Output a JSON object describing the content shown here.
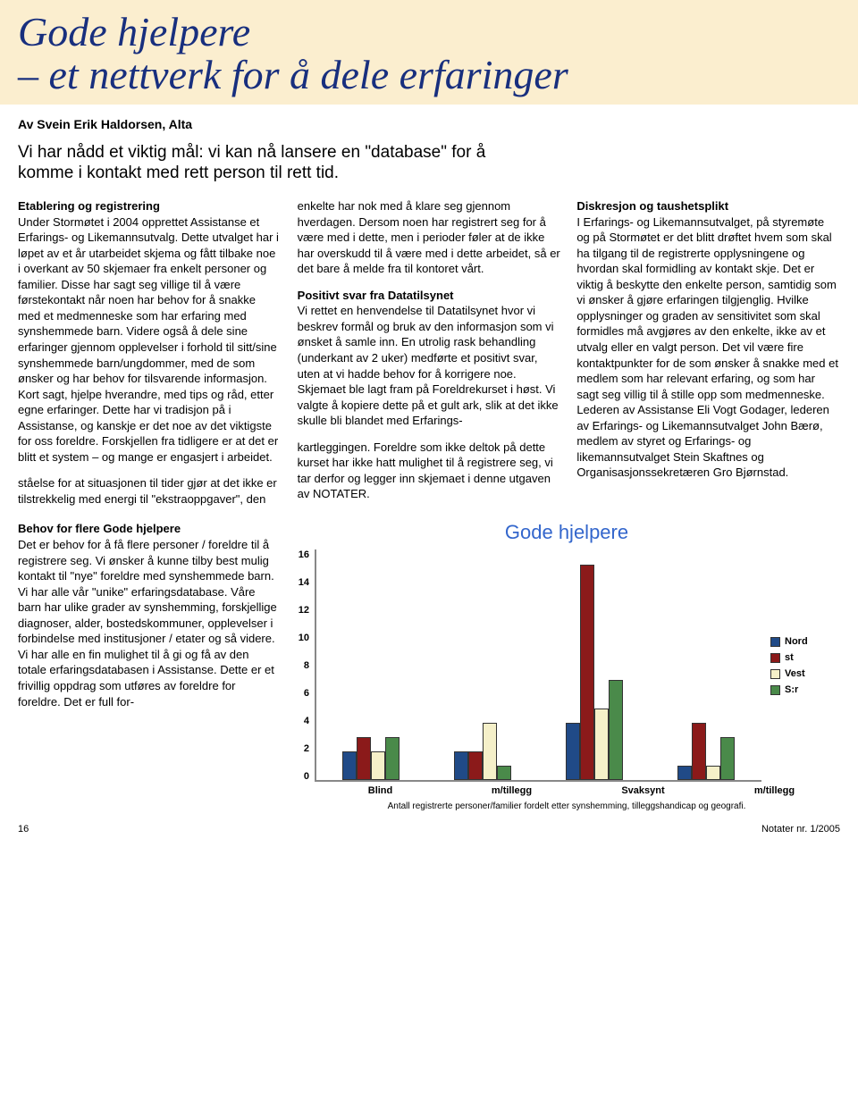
{
  "header": {
    "title_line1": "Gode hjelpere",
    "title_line2": "– et nettverk for å dele erfaringer"
  },
  "byline": "Av Svein Erik Haldorsen, Alta",
  "intro": "Vi har nådd et viktig mål: vi kan nå lansere en \"database\" for å komme i kontakt med rett person til rett tid.",
  "sections": {
    "s1_head": "Etablering og registrering",
    "s1_body": "Under Stormøtet i 2004 opprettet Assistanse et Erfarings- og Likemannsutvalg. Dette utvalget har i løpet av et år utarbeidet skjema og fått tilbake noe i overkant av 50 skjemaer fra enkelt personer og familier. Disse har sagt seg villige til å være førstekontakt når noen har behov for å snakke med et medmenneske som har erfaring med synshemmede barn. Videre også å dele sine erfaringer gjennom opplevelser i forhold til sitt/sine synshemmede barn/ungdommer, med de som ønsker og har behov for tilsvarende informasjon. Kort sagt, hjelpe hverandre, med tips og råd, etter egne erfaringer. Dette har vi tradisjon på i Assistanse, og kanskje er det noe av det viktigste for oss foreldre. Forskjellen fra tidligere er at det er blitt et system – og mange er engasjert i arbeidet.",
    "s1_cont": "ståelse for at situasjonen til tider gjør at det ikke er tilstrekkelig med energi til \"ekstraoppgaver\", den enkelte har nok med å klare seg gjennom hverdagen. Dersom noen har registrert seg for å være med i dette, men i perioder føler at de ikke har overskudd til å være med i dette arbeidet, så er det bare å melde fra til kontoret vårt.",
    "s2_head": "Positivt svar fra Datatilsynet",
    "s2_body": "Vi rettet en henvendelse til Datatilsynet hvor vi beskrev formål og bruk av den informasjon som vi ønsket å samle inn. En utrolig rask behandling (underkant av 2 uker) medførte et positivt svar, uten at vi hadde behov for å korrigere noe. Skjemaet ble lagt fram på Foreldrekurset i høst. Vi valgte å kopiere dette på et gult ark, slik at det ikke skulle bli blandet med Erfarings-",
    "s2_cont": "kartleggingen. Foreldre som ikke deltok på dette kurset har ikke hatt mulighet til å registrere seg, vi tar derfor og legger inn skjemaet i denne utgaven av NOTATER.",
    "s3_head": "Diskresjon og taushetsplikt",
    "s3_body": "I Erfarings- og Likemannsutvalget, på styremøte og på Stormøtet er det blitt drøftet hvem som skal ha tilgang til de registrerte opplysningene og hvordan skal formidling av kontakt skje. Det er viktig å beskytte den enkelte person, samtidig som vi ønsker å gjøre erfaringen tilgjenglig. Hvilke opplysninger og graden av sensitivitet som skal formidles må avgjøres av den enkelte, ikke av et utvalg eller en valgt person. Det vil være fire kontaktpunkter for de som ønsker å snakke med et medlem som har relevant erfaring, og som har sagt seg villig til å stille opp som medmenneske. Lederen av Assistanse Eli Vogt Godager, lederen av Erfarings- og Likemannsutvalget John Bærø, medlem av styret og Erfarings- og likemannsutvalget Stein Skaftnes og Organisasjonssekretæren Gro Bjørnstad."
  },
  "bottom_section": {
    "head": "Behov for flere Gode hjelpere",
    "body": "Det er behov for å få flere personer / foreldre til å registrere seg. Vi ønsker å kunne tilby best mulig kontakt til \"nye\" foreldre med synshemmede barn. Vi har alle vår \"unike\" erfaringsdatabase. Våre barn har ulike grader av synshemming, forskjellige diagnoser, alder, bostedskommuner, opplevelser i forbindelse med institusjoner / etater og så videre. Vi har alle en fin mulighet til å gi og få av den totale erfaringsdatabasen i Assistanse. Dette er et frivillig oppdrag som utføres av foreldre for foreldre. Det er full for-"
  },
  "chart": {
    "title": "Gode hjelpere",
    "caption": "Antall registrerte personer/familier fordelt etter synshemming, tilleggshandicap og geografi.",
    "ymax": 16,
    "yticks": [
      16,
      14,
      12,
      10,
      8,
      6,
      4,
      2,
      0
    ],
    "categories": [
      "Blind",
      "m/tillegg",
      "Svaksynt",
      "m/tillegg"
    ],
    "series": [
      {
        "name": "Nord",
        "color": "#204a87"
      },
      {
        "name": "st",
        "color": "#8b1a1a"
      },
      {
        "name": "Vest",
        "color": "#f5f0c9"
      },
      {
        "name": "S:r",
        "color": "#4a8a4a"
      }
    ],
    "data": {
      "Blind": {
        "Nord": 2,
        "st": 3,
        "Vest": 2,
        "S:r": 3
      },
      "m/tillegg": {
        "Nord": 2,
        "st": 2,
        "Vest": 4,
        "S:r": 1
      },
      "Svaksynt": {
        "Nord": 4,
        "st": 15,
        "Vest": 5,
        "S:r": 7
      },
      "m/tillegg2": {
        "Nord": 1,
        "st": 4,
        "Vest": 1,
        "S:r": 3
      }
    }
  },
  "footer": {
    "page": "16",
    "issue": "Notater nr. 1/2005"
  }
}
